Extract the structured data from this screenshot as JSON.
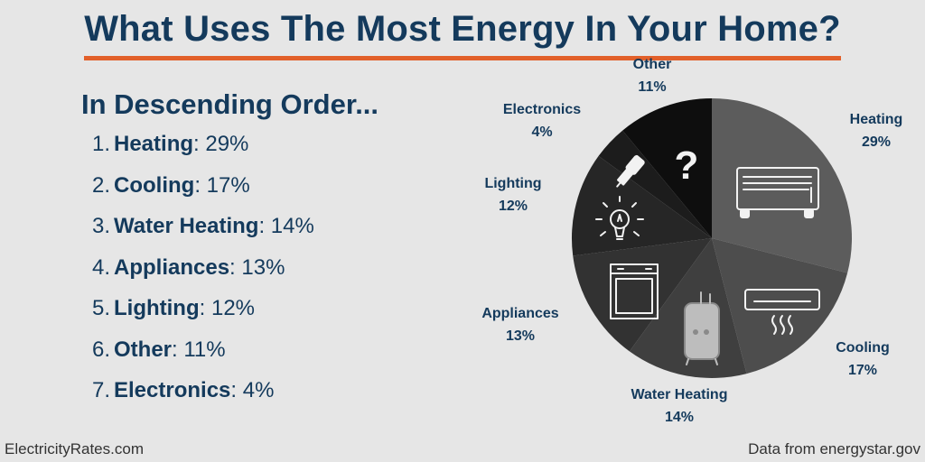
{
  "title": "What Uses The Most Energy In Your Home?",
  "subtitle": "In Descending Order...",
  "list": [
    {
      "num": "1.",
      "name": "Heating",
      "value": ": 29%"
    },
    {
      "num": "2.",
      "name": "Cooling",
      "value": ": 17%"
    },
    {
      "num": "3.",
      "name": "Water Heating",
      "value": ": 14%"
    },
    {
      "num": "4.",
      "name": "Appliances",
      "value": ": 13%"
    },
    {
      "num": "5.",
      "name": "Lighting",
      "value": ": 12%"
    },
    {
      "num": "6.",
      "name": "Other",
      "value": ": 11%"
    },
    {
      "num": "7.",
      "name": "Electronics",
      "value": ": 4%"
    }
  ],
  "chart_data": {
    "type": "pie",
    "slices": [
      {
        "label": "Heating",
        "value": 29,
        "pct_label": "29%",
        "color": "#5c5c5c",
        "icon": "radiator-icon"
      },
      {
        "label": "Cooling",
        "value": 17,
        "pct_label": "17%",
        "color": "#4d4d4d",
        "icon": "air-conditioner-icon"
      },
      {
        "label": "Water Heating",
        "value": 14,
        "pct_label": "14%",
        "color": "#3f3f3f",
        "icon": "water-heater-icon"
      },
      {
        "label": "Appliances",
        "value": 13,
        "pct_label": "13%",
        "color": "#323232",
        "icon": "dishwasher-icon"
      },
      {
        "label": "Lighting",
        "value": 12,
        "pct_label": "12%",
        "color": "#262626",
        "icon": "lightbulb-icon"
      },
      {
        "label": "Electronics",
        "value": 4,
        "pct_label": "4%",
        "color": "#1c1c1c",
        "icon": "usb-plug-icon"
      },
      {
        "label": "Other",
        "value": 11,
        "pct_label": "11%",
        "color": "#0e0e0e",
        "icon": "question-mark-icon"
      }
    ]
  },
  "footer": {
    "left": "ElectricityRates.com",
    "right": "Data from energystar.gov"
  }
}
